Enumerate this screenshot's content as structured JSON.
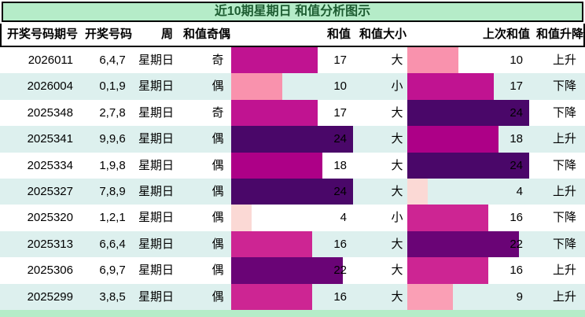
{
  "title": "近10期星期日 和值分析图示",
  "columns": {
    "issue": "开奖号码期号",
    "numbers": "开奖号码",
    "week": "周",
    "parity": "和值奇偶",
    "sum": "和值",
    "size": "和值大小",
    "prev": "上次和值",
    "trend": "和值升降"
  },
  "rows": [
    {
      "issue": "2026011",
      "numbers": "6,4,7",
      "week": "星期日",
      "parity": "奇",
      "sum": 17,
      "size": "大",
      "prev_sum": 10,
      "trend": "上升"
    },
    {
      "issue": "2026004",
      "numbers": "0,1,9",
      "week": "星期日",
      "parity": "偶",
      "sum": 10,
      "size": "小",
      "prev_sum": 17,
      "trend": "下降"
    },
    {
      "issue": "2025348",
      "numbers": "2,7,8",
      "week": "星期日",
      "parity": "奇",
      "sum": 17,
      "size": "大",
      "prev_sum": 24,
      "trend": "下降"
    },
    {
      "issue": "2025341",
      "numbers": "9,9,6",
      "week": "星期日",
      "parity": "偶",
      "sum": 24,
      "size": "大",
      "prev_sum": 18,
      "trend": "上升"
    },
    {
      "issue": "2025334",
      "numbers": "1,9,8",
      "week": "星期日",
      "parity": "偶",
      "sum": 18,
      "size": "大",
      "prev_sum": 24,
      "trend": "下降"
    },
    {
      "issue": "2025327",
      "numbers": "7,8,9",
      "week": "星期日",
      "parity": "偶",
      "sum": 24,
      "size": "大",
      "prev_sum": 4,
      "trend": "上升"
    },
    {
      "issue": "2025320",
      "numbers": "1,2,1",
      "week": "星期日",
      "parity": "偶",
      "sum": 4,
      "size": "小",
      "prev_sum": 16,
      "trend": "下降"
    },
    {
      "issue": "2025313",
      "numbers": "6,6,4",
      "week": "星期日",
      "parity": "偶",
      "sum": 16,
      "size": "大",
      "prev_sum": 22,
      "trend": "下降"
    },
    {
      "issue": "2025306",
      "numbers": "6,9,7",
      "week": "星期日",
      "parity": "偶",
      "sum": 22,
      "size": "大",
      "prev_sum": 16,
      "trend": "上升"
    },
    {
      "issue": "2025299",
      "numbers": "3,8,5",
      "week": "星期日",
      "parity": "偶",
      "sum": 16,
      "size": "大",
      "prev_sum": 9,
      "trend": "上升"
    }
  ],
  "value_colors": {
    "4": "#fbd9d5",
    "9": "#fa9fb5",
    "10": "#f992ad",
    "16": "#cd2593",
    "17": "#c01391",
    "18": "#ad0087",
    "22": "#6a0476",
    "24": "#4a0769"
  },
  "theme": {
    "banner_bg": "#b5ecc8",
    "banner_text": "#1d5c31",
    "row_bg": "#ffffff",
    "row_alt_bg": "#ddf0ee",
    "border": "#000000"
  },
  "chart_data": {
    "type": "bar",
    "orientation": "horizontal",
    "title": "近10期星期日 和值分析图示",
    "categories": [
      "2026011",
      "2026004",
      "2025348",
      "2025341",
      "2025334",
      "2025327",
      "2025320",
      "2025313",
      "2025306",
      "2025299"
    ],
    "series": [
      {
        "name": "和值",
        "values": [
          17,
          10,
          17,
          24,
          18,
          24,
          4,
          16,
          22,
          16
        ]
      },
      {
        "name": "上次和值",
        "values": [
          10,
          17,
          24,
          18,
          24,
          4,
          16,
          22,
          16,
          9
        ]
      }
    ],
    "annotations": {
      "draw_numbers": [
        "6,4,7",
        "0,1,9",
        "2,7,8",
        "9,9,6",
        "1,9,8",
        "7,8,9",
        "1,2,1",
        "6,6,4",
        "6,9,7",
        "3,8,5"
      ],
      "weekday": [
        "星期日",
        "星期日",
        "星期日",
        "星期日",
        "星期日",
        "星期日",
        "星期日",
        "星期日",
        "星期日",
        "星期日"
      ],
      "parity": [
        "奇",
        "偶",
        "奇",
        "偶",
        "偶",
        "偶",
        "偶",
        "偶",
        "偶",
        "偶"
      ],
      "size": [
        "大",
        "小",
        "大",
        "大",
        "大",
        "大",
        "小",
        "大",
        "大",
        "大"
      ],
      "trend": [
        "上升",
        "下降",
        "下降",
        "上升",
        "下降",
        "上升",
        "下降",
        "下降",
        "上升",
        "上升"
      ]
    },
    "value_range": [
      0,
      24
    ],
    "legend_position": "none",
    "grid": false,
    "color_scale": "light-pink (low) → magenta (mid) → dark-purple (high)"
  }
}
